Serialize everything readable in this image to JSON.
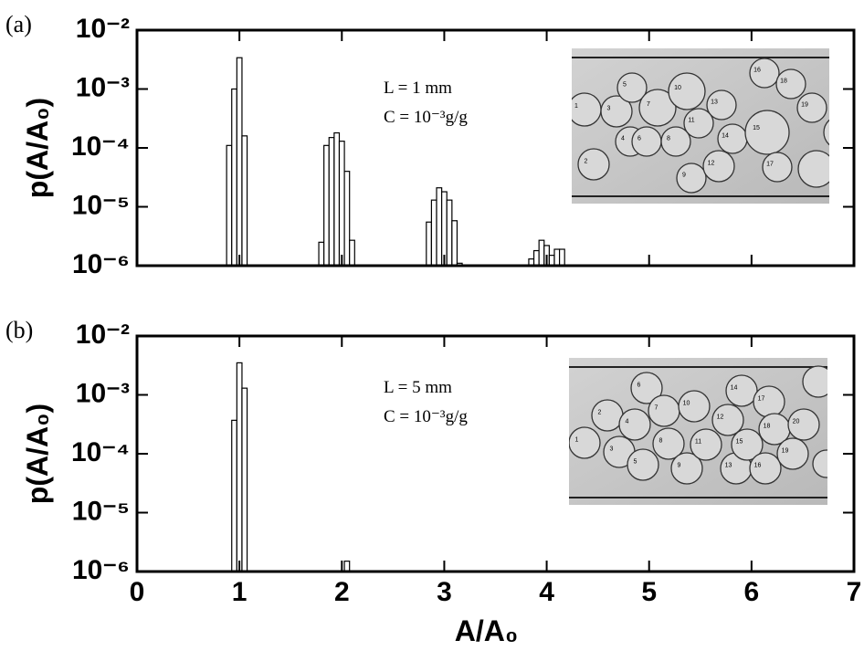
{
  "chart_data": [
    {
      "type": "bar",
      "panel_label": "(a)",
      "ylabel": "p(A/A₀)",
      "annotations": [
        "L = 1 mm",
        "C = 10⁻³g/g"
      ],
      "x": [
        0.9,
        0.95,
        1.0,
        1.05,
        1.8,
        1.85,
        1.9,
        1.95,
        2.0,
        2.05,
        2.1,
        2.85,
        2.9,
        2.95,
        3.0,
        3.05,
        3.1,
        3.15,
        3.85,
        3.9,
        3.95,
        4.0,
        4.05,
        4.1,
        4.15
      ],
      "values": [
        0.00011,
        0.001,
        0.0034,
        0.00016,
        2.5e-06,
        0.00011,
        0.00015,
        0.00018,
        0.00013,
        4e-05,
        2.7e-06,
        5.5e-06,
        1.3e-05,
        2.1e-05,
        1.8e-05,
        1.3e-05,
        5.8e-06,
        1.1e-06,
        1.3e-06,
        1.8e-06,
        2.7e-06,
        2.2e-06,
        1.5e-06,
        1.9e-06,
        1.9e-06
      ],
      "color": "#ffffff",
      "log_y": true,
      "xlim": [
        0,
        7
      ],
      "xticks": [
        0,
        1,
        2,
        3,
        4,
        5,
        6,
        7
      ],
      "xtick_labels": false,
      "ylim": [
        1e-06,
        0.01
      ],
      "yticks": [
        {
          "value": 1e-06,
          "label": "10⁻⁶"
        },
        {
          "value": 1e-05,
          "label": "10⁻⁵"
        },
        {
          "value": 0.0001,
          "label": "10⁻⁴"
        },
        {
          "value": 0.001,
          "label": "10⁻³"
        },
        {
          "value": 0.01,
          "label": "10⁻²"
        }
      ],
      "inset_labels": [
        "1",
        "2",
        "3",
        "4",
        "5",
        "6",
        "7",
        "8",
        "9",
        "10",
        "11",
        "12",
        "13",
        "14",
        "15",
        "16",
        "17",
        "18",
        "19"
      ]
    },
    {
      "type": "bar",
      "panel_label": "(b)",
      "ylabel": "p(A/A₀)",
      "xlabel": "A/A₀",
      "annotations": [
        "L = 5 mm",
        "C = 10⁻³g/g"
      ],
      "x": [
        0.95,
        1.0,
        1.05,
        2.05
      ],
      "values": [
        0.00037,
        0.0035,
        0.0013,
        1.5e-06
      ],
      "color": "#ffffff",
      "log_y": true,
      "xlim": [
        0,
        7
      ],
      "xticks": [
        0,
        1,
        2,
        3,
        4,
        5,
        6,
        7
      ],
      "xtick_labels": true,
      "ylim": [
        1e-06,
        0.01
      ],
      "yticks": [
        {
          "value": 1e-06,
          "label": "10⁻⁶"
        },
        {
          "value": 1e-05,
          "label": "10⁻⁵"
        },
        {
          "value": 0.0001,
          "label": "10⁻⁴"
        },
        {
          "value": 0.001,
          "label": "10⁻³"
        },
        {
          "value": 0.01,
          "label": "10⁻²"
        }
      ],
      "inset_labels": [
        "1",
        "2",
        "3",
        "4",
        "5",
        "6",
        "7",
        "8",
        "9",
        "10",
        "11",
        "12",
        "13",
        "14",
        "15",
        "16",
        "17",
        "18",
        "19",
        "20"
      ]
    }
  ]
}
